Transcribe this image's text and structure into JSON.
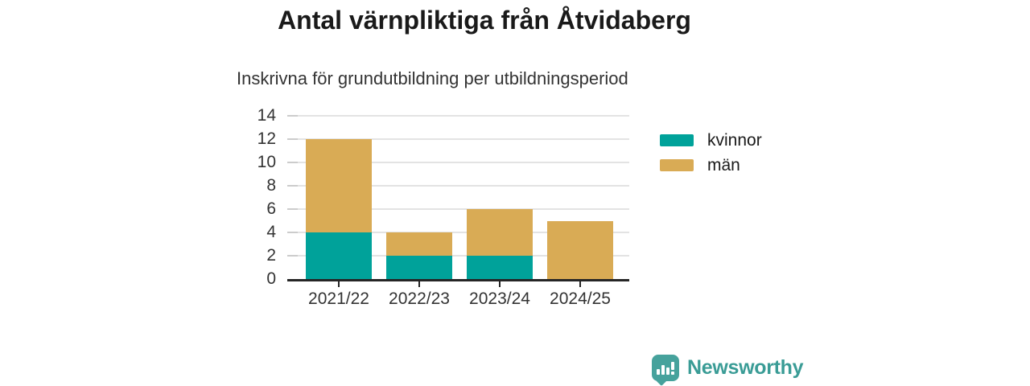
{
  "title": "Antal värnpliktiga från Åtvidaberg",
  "subtitle": "Inskrivna för grundutbildning per utbildningsperiod",
  "chart_data": {
    "type": "bar",
    "stacked": true,
    "categories": [
      "2021/22",
      "2022/23",
      "2023/24",
      "2024/25"
    ],
    "series": [
      {
        "name": "kvinnor",
        "color": "#00a29a",
        "values": [
          4,
          2,
          2,
          0
        ]
      },
      {
        "name": "män",
        "color": "#d9ab55",
        "values": [
          8,
          2,
          4,
          5
        ]
      }
    ],
    "totals": [
      12,
      4,
      6,
      5
    ],
    "ylim": [
      0,
      14
    ],
    "yticks": [
      0,
      2,
      4,
      6,
      8,
      10,
      12,
      14
    ],
    "xlabel": "",
    "ylabel": "",
    "grid": true,
    "legend_position": "right"
  },
  "legend": {
    "items": [
      {
        "label": "kvinnor",
        "color": "#00a29a"
      },
      {
        "label": "män",
        "color": "#d9ab55"
      }
    ]
  },
  "branding": {
    "logo_text": "Newsworthy",
    "logo_icon": "bar-chart-speech-bubble-icon",
    "text_color": "#3a9c96",
    "icon_color": "#46a29c"
  },
  "colors": {
    "background": "#ffffff",
    "title": "#1a1a1a",
    "axis_text": "#333333",
    "axis_line": "#252525",
    "gridline": "#e3e3e3"
  }
}
